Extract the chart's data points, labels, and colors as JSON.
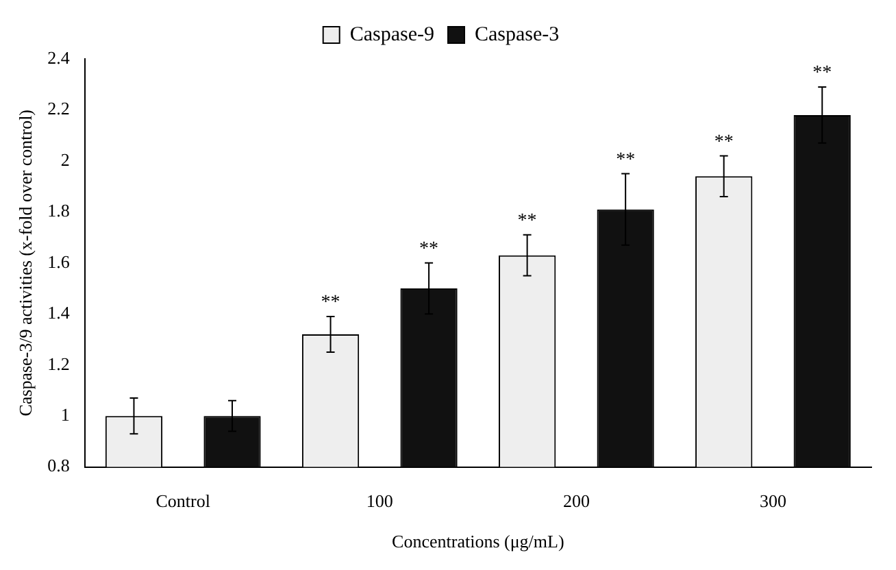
{
  "chart_data": {
    "type": "bar",
    "xlabel": "Concentrations (μg/mL)",
    "ylabel": "Caspase-3/9 activities (x-fold over control)",
    "categories": [
      "Control",
      "100",
      "200",
      "300"
    ],
    "series": [
      {
        "name": "Caspase-9",
        "color": "#eeeeee",
        "values": [
          1.0,
          1.32,
          1.63,
          1.94
        ],
        "errors": [
          0.07,
          0.07,
          0.08,
          0.08
        ],
        "value_labels": [
          null,
          "**",
          "**",
          "**"
        ]
      },
      {
        "name": "Caspase-3",
        "color": "#111111",
        "values": [
          1.0,
          1.5,
          1.81,
          2.18
        ],
        "errors": [
          0.06,
          0.1,
          0.14,
          0.11
        ],
        "value_labels": [
          null,
          "**",
          "**",
          "**"
        ]
      }
    ],
    "ylim": [
      0.8,
      2.4
    ],
    "yticks": [
      0.8,
      1,
      1.2,
      1.4,
      1.6,
      1.8,
      2,
      2.2,
      2.4
    ],
    "grid": false,
    "legend": "top"
  }
}
